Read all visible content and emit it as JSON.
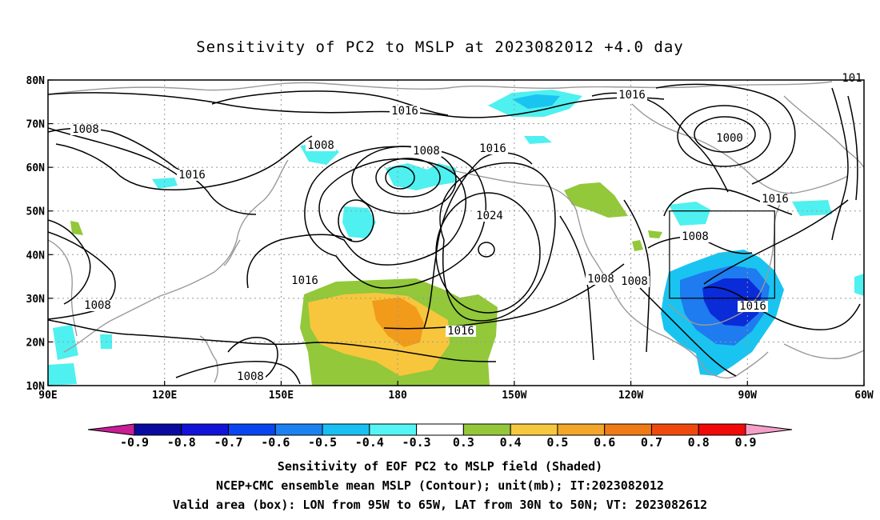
{
  "title": "Sensitivity of PC2 to MSLP at 2023082012 +4.0 day",
  "map": {
    "lon_range": [
      90,
      300
    ],
    "lat_range": [
      10,
      80
    ],
    "x_ticks": [
      {
        "lon": 90,
        "label": "90E"
      },
      {
        "lon": 120,
        "label": "120E"
      },
      {
        "lon": 150,
        "label": "150E"
      },
      {
        "lon": 180,
        "label": "180"
      },
      {
        "lon": 210,
        "label": "150W"
      },
      {
        "lon": 240,
        "label": "120W"
      },
      {
        "lon": 270,
        "label": "90W"
      },
      {
        "lon": 300,
        "label": "60W"
      }
    ],
    "y_ticks": [
      {
        "lat": 80,
        "label": "80N"
      },
      {
        "lat": 70,
        "label": "70N"
      },
      {
        "lat": 60,
        "label": "60N"
      },
      {
        "lat": 50,
        "label": "50N"
      },
      {
        "lat": 40,
        "label": "40N"
      },
      {
        "lat": 30,
        "label": "30N"
      },
      {
        "lat": 20,
        "label": "20N"
      },
      {
        "lat": 10,
        "label": "10N"
      }
    ],
    "grid": "dotted",
    "valid_box": {
      "lon_west": 265,
      "lon_east": 295,
      "lat_south": 30,
      "lat_north": 50
    },
    "contour_labels": [
      "1016",
      "1008",
      "1016",
      "1008",
      "1016",
      "1008",
      "1016",
      "1000",
      "1024",
      "1016",
      "1008",
      "1016",
      "1008",
      "1008",
      "1016",
      "1008",
      "1016",
      "1008",
      "1008",
      "101"
    ],
    "shading_colors": {
      "neg_strong": "#0a2bd8",
      "neg_mid": "#1e7bf0",
      "neg_light": "#19c4f0",
      "neg_weak": "#4ff0f0",
      "pos_weak": "#92c83a",
      "pos_mid": "#f7c63c",
      "pos_strong": "#f29a1a"
    }
  },
  "colorbar": {
    "ticks": [
      "-0.9",
      "-0.8",
      "-0.7",
      "-0.6",
      "-0.5",
      "-0.4",
      "-0.3",
      "0.3",
      "0.4",
      "0.5",
      "0.6",
      "0.7",
      "0.8",
      "0.9"
    ],
    "colors": [
      "#0a0aa0",
      "#1212d8",
      "#0a46f0",
      "#1c82f2",
      "#19bff2",
      "#55f5f5",
      "#ffffff",
      "#94c83a",
      "#f6c83e",
      "#f3a62a",
      "#f07a16",
      "#ee4a10",
      "#f20a0a"
    ],
    "low_end_color": "#c81e96",
    "high_end_color": "#f5a0c8"
  },
  "footer": {
    "line1": "Sensitivity of EOF PC2 to MSLP field (Shaded)",
    "line2": "NCEP+CMC ensemble mean MSLP (Contour); unit(mb); IT:2023082012",
    "line3": "Valid area (box): LON from 95W to 65W, LAT from 30N to 50N; VT: 2023082612"
  }
}
